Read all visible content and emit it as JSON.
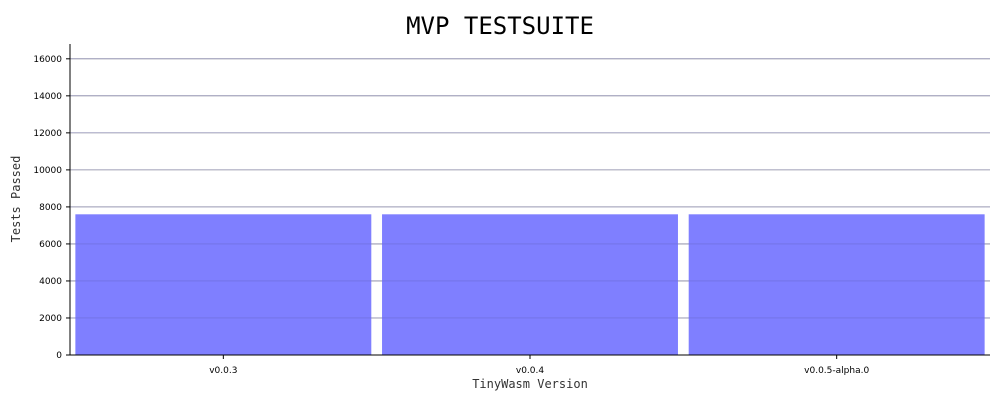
{
  "chart_data": {
    "type": "bar",
    "title": "MVP TESTSUITE",
    "xlabel": "TinyWasm Version",
    "ylabel": "Tests Passed",
    "categories": [
      "v0.0.3",
      "v0.0.4",
      "v0.0.5-alpha.0"
    ],
    "values": [
      7600,
      7600,
      7600
    ],
    "ylim": [
      0,
      16800
    ],
    "yticks": [
      0,
      2000,
      4000,
      6000,
      8000,
      10000,
      12000,
      14000,
      16000
    ],
    "grid": true,
    "bar_color": "#7f7fff"
  }
}
